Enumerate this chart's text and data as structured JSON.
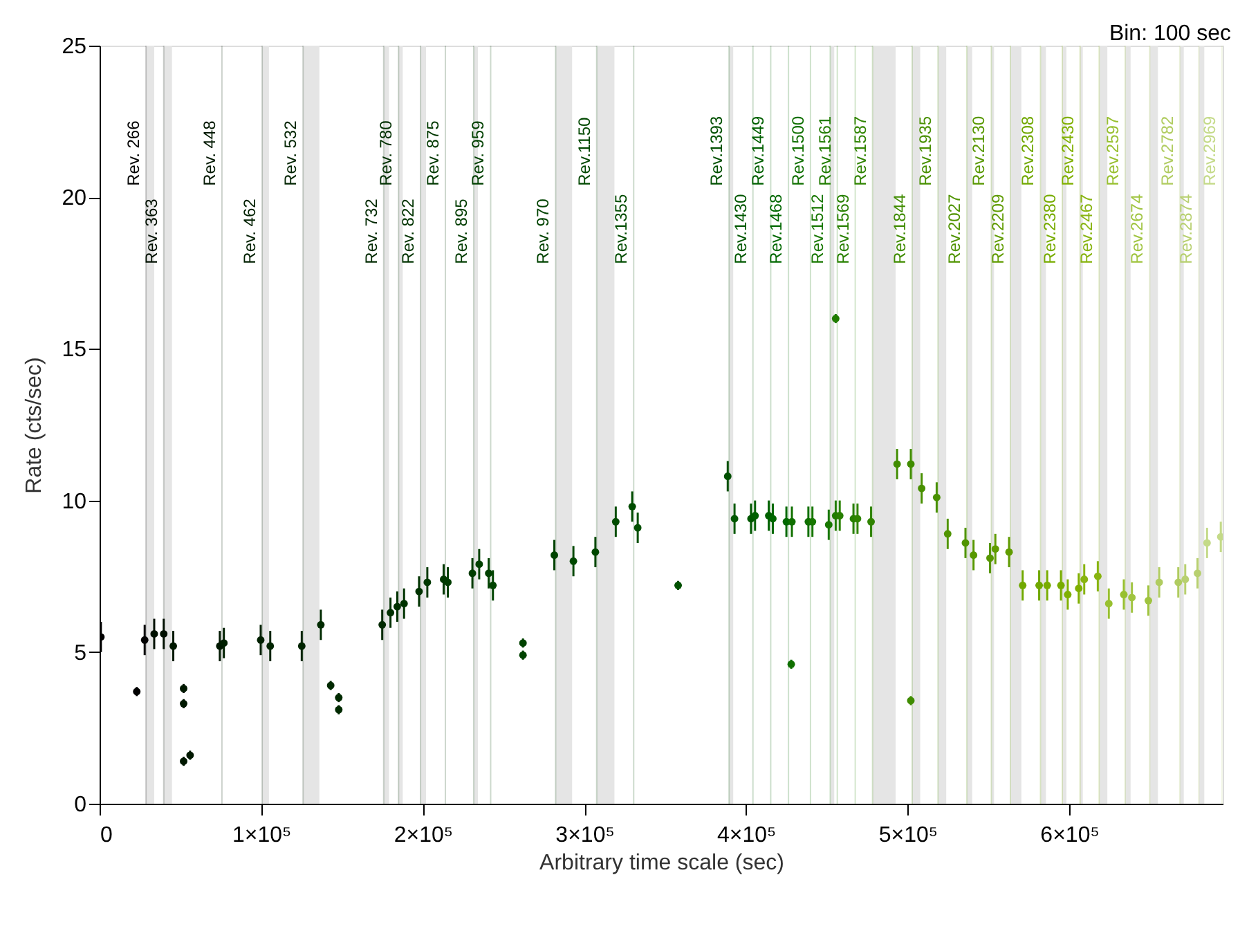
{
  "chart_data": {
    "type": "scatter",
    "xlabel": "Arbitrary time scale (sec)",
    "ylabel": "Rate (cts/sec)",
    "annotations": [
      "Bin: 100 sec"
    ],
    "xlim": [
      0,
      695000
    ],
    "ylim": [
      0,
      25
    ],
    "xticks": [
      0,
      {
        "value": 100000,
        "label": "1×10⁵"
      },
      {
        "value": 200000,
        "label": "2×10⁵"
      },
      {
        "value": 300000,
        "label": "3×10⁵"
      },
      {
        "value": 400000,
        "label": "4×10⁵"
      },
      {
        "value": 500000,
        "label": "5×10⁵"
      },
      {
        "value": 600000,
        "label": "6×10⁵"
      }
    ],
    "yticks": [
      0,
      5,
      10,
      15,
      20,
      25
    ],
    "grid": false,
    "marker": "circle",
    "series": [
      {
        "x": [
          800,
          27900,
          33800,
          39700,
          45600,
          74400,
          76900,
          99700,
          105600,
          125100,
          136900,
          174900,
          180000,
          184200,
          188400,
          197700,
          202800,
          212900,
          215500,
          230700,
          234900,
          240800,
          243400,
          281400,
          293200,
          306800,
          319400,
          329600,
          333000,
          388700,
          392900,
          403100,
          405600,
          414100,
          416600,
          425000,
          428400,
          438600,
          441100,
          451200,
          455500,
          458000,
          466500,
          469000,
          477400,
          493500,
          502000,
          508700,
          518000,
          524800,
          535800,
          540800,
          551000,
          554300,
          562800,
          571200,
          581400,
          586400,
          594900,
          599100,
          605900,
          609300,
          617700,
          624500,
          633800,
          638800,
          649000,
          655700,
          667500,
          671800,
          679400,
          685300,
          693800,
          23000,
          52000,
          52000,
          56000,
          52000,
          143000,
          148000,
          148000,
          262000,
          262000,
          455500,
          358000,
          428000,
          502000
        ],
        "values": [
          5.5,
          5.4,
          5.6,
          5.6,
          5.2,
          5.2,
          5.3,
          5.4,
          5.2,
          5.2,
          5.9,
          5.9,
          6.3,
          6.5,
          6.6,
          7.0,
          7.3,
          7.4,
          7.3,
          7.6,
          7.9,
          7.6,
          7.2,
          8.2,
          8.0,
          8.3,
          9.3,
          9.8,
          9.1,
          10.8,
          9.4,
          9.4,
          9.5,
          9.5,
          9.4,
          9.3,
          9.3,
          9.3,
          9.3,
          9.2,
          9.5,
          9.5,
          9.4,
          9.4,
          9.3,
          11.2,
          11.2,
          10.4,
          10.1,
          8.9,
          8.6,
          8.2,
          8.1,
          8.4,
          8.3,
          7.2,
          7.2,
          7.2,
          7.2,
          6.9,
          7.1,
          7.4,
          7.5,
          6.6,
          6.9,
          6.8,
          6.7,
          7.3,
          7.3,
          7.4,
          7.6,
          8.6,
          8.8,
          3.7,
          3.8,
          3.3,
          1.6,
          1.4,
          3.9,
          3.5,
          3.1,
          5.3,
          4.9,
          16.0,
          7.2,
          4.6,
          3.4
        ],
        "errors": [
          0.5,
          0.5,
          0.5,
          0.5,
          0.5,
          0.5,
          0.5,
          0.5,
          0.5,
          0.5,
          0.5,
          0.5,
          0.5,
          0.5,
          0.5,
          0.5,
          0.5,
          0.5,
          0.5,
          0.5,
          0.5,
          0.5,
          0.5,
          0.5,
          0.5,
          0.5,
          0.5,
          0.5,
          0.5,
          0.5,
          0.5,
          0.5,
          0.5,
          0.5,
          0.5,
          0.5,
          0.5,
          0.5,
          0.5,
          0.5,
          0.5,
          0.5,
          0.5,
          0.5,
          0.5,
          0.5,
          0.5,
          0.5,
          0.5,
          0.5,
          0.5,
          0.5,
          0.5,
          0.5,
          0.5,
          0.5,
          0.5,
          0.5,
          0.5,
          0.5,
          0.5,
          0.5,
          0.5,
          0.5,
          0.5,
          0.5,
          0.5,
          0.5,
          0.5,
          0.5,
          0.5,
          0.5,
          0.5,
          0.15,
          0.15,
          0.15,
          0.15,
          0.15,
          0.15,
          0.15,
          0.15,
          0.15,
          0.15,
          0.15,
          0.15,
          0.15,
          0.15
        ],
        "colors": [
          "#000000",
          "#000000",
          "#001000",
          "#001000",
          "#001800",
          "#001800",
          "#002000",
          "#002000",
          "#002400",
          "#002400",
          "#002a00",
          "#002a00",
          "#003000",
          "#003000",
          "#003300",
          "#003300",
          "#003800",
          "#003800",
          "#003c00",
          "#003c00",
          "#004000",
          "#004000",
          "#004300",
          "#004300",
          "#004800",
          "#004800",
          "#004c00",
          "#004c00",
          "#005000",
          "#005000",
          "#005800",
          "#005800",
          "#006000",
          "#006000",
          "#006800",
          "#006800",
          "#107000",
          "#107000",
          "#187800",
          "#187800",
          "#207c00",
          "#288000",
          "#288000",
          "#308400",
          "#308400",
          "#408c00",
          "#408c00",
          "#489000",
          "#489000",
          "#509400",
          "#509400",
          "#589800",
          "#589800",
          "#609c00",
          "#609c00",
          "#70a800",
          "#70a800",
          "#78ac00",
          "#78ac00",
          "#80b000",
          "#80b000",
          "#88b410",
          "#88b410",
          "#98c030",
          "#98c030",
          "#a0c440",
          "#a0c440",
          "#b0cc60",
          "#b0cc60",
          "#b8d070",
          "#b8d070",
          "#c4da88",
          "#c4da88",
          "#000000",
          "#001800",
          "#001800",
          "#001800",
          "#001800",
          "#002a00",
          "#002a00",
          "#002a00",
          "#004300",
          "#004300",
          "#207c00",
          "#005000",
          "#107000",
          "#408c00"
        ]
      }
    ],
    "bands": [
      {
        "axis": "x",
        "from": 28700,
        "to": 33800,
        "color": "#e5e5e5"
      },
      {
        "axis": "x",
        "from": 39700,
        "to": 44800,
        "color": "#e5e5e5"
      },
      {
        "axis": "x",
        "from": 100600,
        "to": 104800,
        "color": "#e5e5e5"
      },
      {
        "axis": "x",
        "from": 125900,
        "to": 136000,
        "color": "#e5e5e5"
      },
      {
        "axis": "x",
        "from": 175800,
        "to": 179100,
        "color": "#e5e5e5"
      },
      {
        "axis": "x",
        "from": 185000,
        "to": 187600,
        "color": "#e5e5e5"
      },
      {
        "axis": "x",
        "from": 198600,
        "to": 202000,
        "color": "#e5e5e5"
      },
      {
        "axis": "x",
        "from": 231500,
        "to": 234100,
        "color": "#e5e5e5"
      },
      {
        "axis": "x",
        "from": 282200,
        "to": 292400,
        "color": "#e5e5e5"
      },
      {
        "axis": "x",
        "from": 307600,
        "to": 318600,
        "color": "#e5e5e5"
      },
      {
        "axis": "x",
        "from": 389500,
        "to": 392100,
        "color": "#e5e5e5"
      },
      {
        "axis": "x",
        "from": 452100,
        "to": 454600,
        "color": "#e5e5e5"
      },
      {
        "axis": "x",
        "from": 478300,
        "to": 492600,
        "color": "#e5e5e5"
      },
      {
        "axis": "x",
        "from": 502800,
        "to": 507800,
        "color": "#e5e5e5"
      },
      {
        "axis": "x",
        "from": 518800,
        "to": 523900,
        "color": "#e5e5e5"
      },
      {
        "axis": "x",
        "from": 536600,
        "to": 540000,
        "color": "#e5e5e5"
      },
      {
        "axis": "x",
        "from": 551800,
        "to": 553500,
        "color": "#e5e5e5"
      },
      {
        "axis": "x",
        "from": 563600,
        "to": 570400,
        "color": "#e5e5e5"
      },
      {
        "axis": "x",
        "from": 582200,
        "to": 585600,
        "color": "#e5e5e5"
      },
      {
        "axis": "x",
        "from": 595700,
        "to": 598300,
        "color": "#e5e5e5"
      },
      {
        "axis": "x",
        "from": 606700,
        "to": 608400,
        "color": "#e5e5e5"
      },
      {
        "axis": "x",
        "from": 618500,
        "to": 623600,
        "color": "#e5e5e5"
      },
      {
        "axis": "x",
        "from": 634600,
        "to": 638000,
        "color": "#e5e5e5"
      },
      {
        "axis": "x",
        "from": 649800,
        "to": 654900,
        "color": "#e5e5e5"
      },
      {
        "axis": "x",
        "from": 668400,
        "to": 670900,
        "color": "#e5e5e5"
      },
      {
        "axis": "x",
        "from": 680200,
        "to": 683600,
        "color": "#e5e5e5"
      }
    ],
    "ref_lines": [
      {
        "axis": "x",
        "value": 28700,
        "label": "Rev. 266",
        "color": "#000000"
      },
      {
        "axis": "x",
        "value": 39700,
        "label": "Rev. 363",
        "color": "#001000"
      },
      {
        "axis": "x",
        "value": 75700,
        "label": "Rev. 448",
        "color": "#001800"
      },
      {
        "axis": "x",
        "value": 100600,
        "label": "Rev. 462",
        "color": "#002000"
      },
      {
        "axis": "x",
        "value": 125900,
        "label": "Rev. 532",
        "color": "#002400"
      },
      {
        "axis": "x",
        "value": 175800,
        "label": "Rev. 732",
        "color": "#002a00"
      },
      {
        "axis": "x",
        "value": 185000,
        "label": "Rev. 780",
        "color": "#003000"
      },
      {
        "axis": "x",
        "value": 198600,
        "label": "Rev. 822",
        "color": "#003300"
      },
      {
        "axis": "x",
        "value": 214000,
        "label": "Rev. 875",
        "color": "#003800"
      },
      {
        "axis": "x",
        "value": 231500,
        "label": "Rev. 895",
        "color": "#003c00"
      },
      {
        "axis": "x",
        "value": 242000,
        "label": "Rev. 959",
        "color": "#004000"
      },
      {
        "axis": "x",
        "value": 282200,
        "label": "Rev. 970",
        "color": "#004300"
      },
      {
        "axis": "x",
        "value": 307600,
        "label": "Rev.1150",
        "color": "#004800"
      },
      {
        "axis": "x",
        "value": 330500,
        "label": "Rev.1355",
        "color": "#004c00"
      },
      {
        "axis": "x",
        "value": 389500,
        "label": "Rev.1393",
        "color": "#005000"
      },
      {
        "axis": "x",
        "value": 404300,
        "label": "Rev.1430",
        "color": "#005800"
      },
      {
        "axis": "x",
        "value": 415300,
        "label": "Rev.1449",
        "color": "#006000"
      },
      {
        "axis": "x",
        "value": 426300,
        "label": "Rev.1468",
        "color": "#006800"
      },
      {
        "axis": "x",
        "value": 439900,
        "label": "Rev.1500",
        "color": "#107000"
      },
      {
        "axis": "x",
        "value": 452100,
        "label": "Rev.1512",
        "color": "#187800"
      },
      {
        "axis": "x",
        "value": 456500,
        "label": "Rev.1561",
        "color": "#207c00"
      },
      {
        "axis": "x",
        "value": 467600,
        "label": "Rev.1569",
        "color": "#288000"
      },
      {
        "axis": "x",
        "value": 478300,
        "label": "Rev.1587",
        "color": "#308400"
      },
      {
        "axis": "x",
        "value": 502800,
        "label": "Rev.1844",
        "color": "#408c00"
      },
      {
        "axis": "x",
        "value": 518800,
        "label": "Rev.1935",
        "color": "#489000"
      },
      {
        "axis": "x",
        "value": 536600,
        "label": "Rev.2027",
        "color": "#509400"
      },
      {
        "axis": "x",
        "value": 551800,
        "label": "Rev.2130",
        "color": "#589800"
      },
      {
        "axis": "x",
        "value": 563600,
        "label": "Rev.2209",
        "color": "#609c00"
      },
      {
        "axis": "x",
        "value": 582200,
        "label": "Rev.2308",
        "color": "#70a800"
      },
      {
        "axis": "x",
        "value": 595700,
        "label": "Rev.2380",
        "color": "#78ac00"
      },
      {
        "axis": "x",
        "value": 606700,
        "label": "Rev.2430",
        "color": "#80b000"
      },
      {
        "axis": "x",
        "value": 618500,
        "label": "Rev.2467",
        "color": "#88b410"
      },
      {
        "axis": "x",
        "value": 634600,
        "label": "Rev.2597",
        "color": "#98c030"
      },
      {
        "axis": "x",
        "value": 649800,
        "label": "Rev.2674",
        "color": "#a0c440"
      },
      {
        "axis": "x",
        "value": 668400,
        "label": "Rev.2782",
        "color": "#b0cc60"
      },
      {
        "axis": "x",
        "value": 680200,
        "label": "Rev.2874",
        "color": "#b8d070"
      },
      {
        "axis": "x",
        "value": 694500,
        "label": "Rev.2969",
        "color": "#c4da88"
      }
    ]
  }
}
